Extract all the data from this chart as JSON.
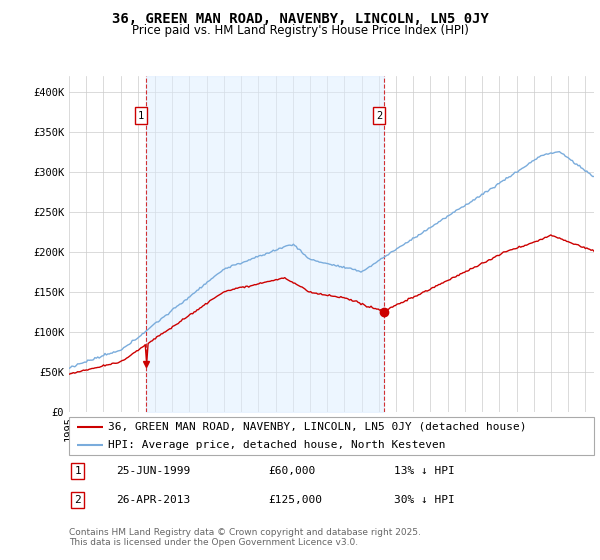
{
  "title": "36, GREEN MAN ROAD, NAVENBY, LINCOLN, LN5 0JY",
  "subtitle": "Price paid vs. HM Land Registry's House Price Index (HPI)",
  "ylabel_ticks": [
    "£0",
    "£50K",
    "£100K",
    "£150K",
    "£200K",
    "£250K",
    "£300K",
    "£350K",
    "£400K"
  ],
  "ytick_values": [
    0,
    50000,
    100000,
    150000,
    200000,
    250000,
    300000,
    350000,
    400000
  ],
  "ylim": [
    0,
    420000
  ],
  "xlim_start": 1995.0,
  "xlim_end": 2025.5,
  "red_line_color": "#cc0000",
  "blue_line_color": "#7aacdc",
  "blue_fill_color": "#ddeeff",
  "grid_color": "#cccccc",
  "background_color": "#ffffff",
  "marker1_x": 1999.48,
  "marker1_y": 60000,
  "marker2_x": 2013.32,
  "marker2_y": 125000,
  "vline1_x": 1999.48,
  "vline2_x": 2013.32,
  "legend_line1": "36, GREEN MAN ROAD, NAVENBY, LINCOLN, LN5 0JY (detached house)",
  "legend_line2": "HPI: Average price, detached house, North Kesteven",
  "annotation1_date": "25-JUN-1999",
  "annotation1_price": "£60,000",
  "annotation1_hpi": "13% ↓ HPI",
  "annotation2_date": "26-APR-2013",
  "annotation2_price": "£125,000",
  "annotation2_hpi": "30% ↓ HPI",
  "footer": "Contains HM Land Registry data © Crown copyright and database right 2025.\nThis data is licensed under the Open Government Licence v3.0.",
  "title_fontsize": 10,
  "subtitle_fontsize": 8.5,
  "tick_fontsize": 7.5,
  "legend_fontsize": 8,
  "annotation_fontsize": 8,
  "footer_fontsize": 6.5
}
